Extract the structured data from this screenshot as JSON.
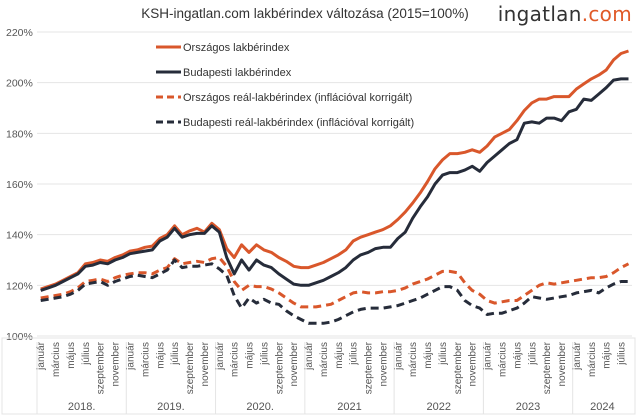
{
  "chart_data": {
    "type": "line",
    "title": "KSH-ingatlan.com lakbérindex változása (2015=100%)",
    "ylim": [
      100,
      220
    ],
    "yticks": [
      100,
      120,
      140,
      160,
      180,
      200,
      220
    ],
    "ytick_suffix": "%",
    "grid": true,
    "legend": "top-left inside",
    "x_start": "2018-01",
    "x_end": "2024-08",
    "month_labels": [
      "január",
      "március",
      "május",
      "július",
      "szeptember",
      "november"
    ],
    "year_labels": [
      "2018.",
      "2019.",
      "2020.",
      "2021",
      "2022",
      "2023",
      "2024"
    ],
    "series": [
      {
        "name": "Országos lakbérindex",
        "color": "#d9572b",
        "dashed": false,
        "values": [
          118.5,
          119.5,
          120.5,
          122,
          123.5,
          125,
          128.5,
          129,
          130,
          129.5,
          131,
          132,
          133.5,
          134,
          135,
          135.5,
          138.5,
          140,
          143.5,
          140,
          141.5,
          142.5,
          141,
          144.5,
          142,
          134.5,
          131,
          136,
          133,
          136,
          134,
          133,
          131,
          129.5,
          127.5,
          127,
          127,
          128,
          129,
          130.5,
          132,
          134,
          137.5,
          139,
          140,
          141,
          142,
          143.5,
          146,
          149,
          152.5,
          156.5,
          161,
          166,
          169.5,
          172,
          172,
          172.5,
          173.5,
          172.5,
          175,
          178.5,
          180,
          181.5,
          185,
          189,
          192,
          193.5,
          193.5,
          194.5,
          194.5,
          194.5,
          197.5,
          199.5,
          201.5,
          203,
          205,
          209,
          211.5,
          212.5
        ]
      },
      {
        "name": "Budapesti lakbérindex",
        "color": "#262c3a",
        "dashed": false,
        "values": [
          118,
          119,
          120,
          121.5,
          123,
          124.5,
          127.5,
          128,
          129,
          128.5,
          130,
          131,
          132.5,
          133,
          133.5,
          134,
          137.5,
          139,
          142.5,
          139,
          140,
          140.5,
          140.5,
          143.5,
          141,
          131,
          124.5,
          130,
          126,
          130,
          128,
          127,
          124.5,
          122.5,
          120.5,
          120,
          120,
          121,
          122,
          123.5,
          125,
          127,
          130,
          132,
          133,
          134.5,
          135,
          135,
          138.5,
          141,
          146.5,
          151,
          155,
          160,
          163.5,
          164.5,
          164.5,
          165.5,
          167,
          165,
          168.5,
          171,
          173.5,
          176,
          177.5,
          184,
          184.5,
          184,
          186,
          186,
          185,
          188.5,
          189.5,
          193.5,
          193,
          195.5,
          198,
          201,
          201.5,
          201.5
        ]
      },
      {
        "name": "Országos reál-lakbérindex (inflációval korrigált)",
        "color": "#d9572b",
        "dashed": true,
        "values": [
          115,
          115.5,
          116,
          116.5,
          117.5,
          119,
          121.5,
          122,
          122.5,
          121.5,
          123,
          124,
          124.5,
          125,
          125,
          124.5,
          126,
          127,
          130.5,
          128.5,
          129,
          129.5,
          129,
          130.5,
          131,
          127.5,
          121.5,
          118,
          120,
          119.5,
          119.5,
          118.5,
          117,
          115,
          113,
          111.5,
          111.5,
          111.5,
          112,
          112.5,
          114,
          115.5,
          117,
          117.5,
          117,
          117,
          117.5,
          117.5,
          118,
          119,
          120.5,
          121.5,
          122.5,
          124,
          125.5,
          125.5,
          125,
          121,
          118,
          116.5,
          114,
          113,
          113.5,
          114,
          114,
          116,
          118,
          120,
          121,
          120.5,
          121,
          121.5,
          122,
          122.5,
          123,
          123,
          123.5,
          125,
          127,
          128.5
        ]
      },
      {
        "name": "Budapesti reál-lakbérindex (inflációval korrigált)",
        "color": "#262c3a",
        "dashed": true,
        "values": [
          114,
          114.5,
          115,
          115.5,
          116.5,
          118,
          120.5,
          121,
          121.5,
          120,
          121.5,
          122.5,
          123.5,
          124,
          123.5,
          123,
          124.5,
          126,
          130,
          127,
          127.5,
          127.5,
          128,
          128.5,
          126.5,
          124,
          116,
          111,
          115,
          113,
          114.5,
          113,
          112.5,
          110,
          108,
          106.5,
          105,
          105,
          105,
          105.5,
          106.5,
          108,
          109.5,
          110.5,
          111,
          111,
          111,
          111.5,
          112,
          113,
          114,
          115,
          116.5,
          118,
          119.5,
          119.5,
          118,
          114,
          112,
          111,
          108.5,
          109,
          109,
          110,
          111,
          113,
          115.5,
          115,
          114.5,
          115,
          115.5,
          116,
          117,
          117.5,
          118,
          117,
          119,
          120.5,
          121.5,
          121.5
        ]
      }
    ]
  },
  "logo": {
    "main": "ingatlan",
    "suffix": ".com"
  }
}
